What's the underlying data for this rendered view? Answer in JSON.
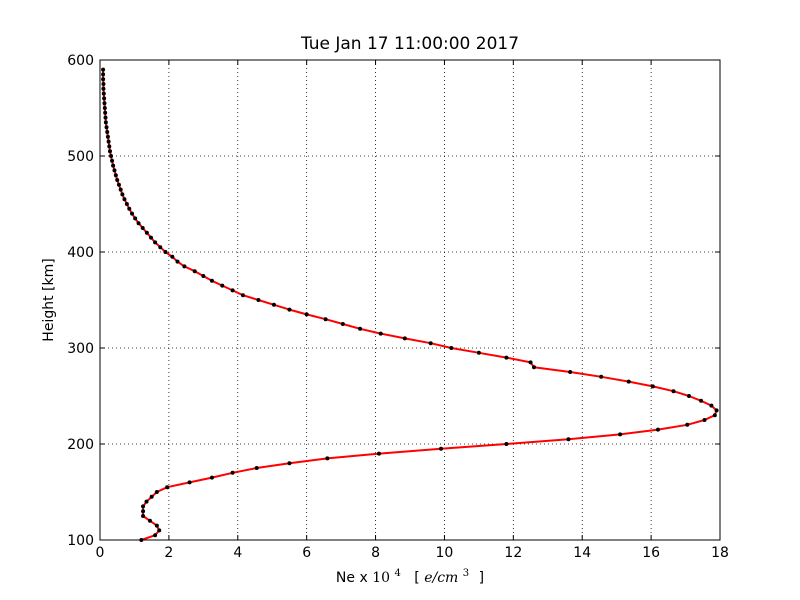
{
  "chart_data": {
    "type": "line",
    "title": "Tue Jan 17 11:00:00 2017",
    "xlabel": {
      "prefix": "Ne x ",
      "base": "10",
      "exponent": "4",
      "unit_open": "[",
      "unit_num": "e/cm",
      "unit_exp": "3",
      "unit_close": "]"
    },
    "ylabel": "Height [km]",
    "xlim": [
      0,
      18
    ],
    "ylim": [
      100,
      600
    ],
    "xticks": [
      0,
      2,
      4,
      6,
      8,
      10,
      12,
      14,
      16,
      18
    ],
    "yticks": [
      100,
      200,
      300,
      400,
      500,
      600
    ],
    "grid": true,
    "colors": {
      "line": "#ff0000",
      "marker": "#000000"
    },
    "series": [
      {
        "points": [
          [
            1.2,
            100
          ],
          [
            1.6,
            105
          ],
          [
            1.72,
            110
          ],
          [
            1.65,
            115
          ],
          [
            1.45,
            120
          ],
          [
            1.25,
            125
          ],
          [
            1.25,
            130
          ],
          [
            1.25,
            135
          ],
          [
            1.35,
            140
          ],
          [
            1.5,
            145
          ],
          [
            1.65,
            150
          ],
          [
            1.95,
            155
          ],
          [
            2.6,
            160
          ],
          [
            3.25,
            165
          ],
          [
            3.85,
            170
          ],
          [
            4.55,
            175
          ],
          [
            5.5,
            180
          ],
          [
            6.6,
            185
          ],
          [
            8.1,
            190
          ],
          [
            9.9,
            195
          ],
          [
            11.8,
            200
          ],
          [
            13.6,
            205
          ],
          [
            15.1,
            210
          ],
          [
            16.2,
            215
          ],
          [
            17.05,
            220
          ],
          [
            17.55,
            225
          ],
          [
            17.85,
            230
          ],
          [
            17.9,
            235
          ],
          [
            17.75,
            240
          ],
          [
            17.45,
            245
          ],
          [
            17.1,
            250
          ],
          [
            16.65,
            255
          ],
          [
            16.05,
            260
          ],
          [
            15.35,
            265
          ],
          [
            14.55,
            270
          ],
          [
            13.65,
            275
          ],
          [
            12.6,
            280
          ],
          [
            12.5,
            285
          ],
          [
            11.8,
            290
          ],
          [
            11.0,
            295
          ],
          [
            10.2,
            300
          ],
          [
            9.6,
            305
          ],
          [
            8.85,
            310
          ],
          [
            8.15,
            315
          ],
          [
            7.55,
            320
          ],
          [
            7.05,
            325
          ],
          [
            6.55,
            330
          ],
          [
            6.0,
            335
          ],
          [
            5.5,
            340
          ],
          [
            5.05,
            345
          ],
          [
            4.6,
            350
          ],
          [
            4.15,
            355
          ],
          [
            3.85,
            360
          ],
          [
            3.55,
            365
          ],
          [
            3.25,
            370
          ],
          [
            3.0,
            375
          ],
          [
            2.75,
            380
          ],
          [
            2.45,
            385
          ],
          [
            2.25,
            390
          ],
          [
            2.1,
            395
          ],
          [
            1.9,
            400
          ],
          [
            1.75,
            405
          ],
          [
            1.6,
            410
          ],
          [
            1.48,
            415
          ],
          [
            1.36,
            420
          ],
          [
            1.24,
            425
          ],
          [
            1.12,
            430
          ],
          [
            1.02,
            435
          ],
          [
            0.93,
            440
          ],
          [
            0.85,
            445
          ],
          [
            0.78,
            450
          ],
          [
            0.71,
            455
          ],
          [
            0.65,
            460
          ],
          [
            0.6,
            465
          ],
          [
            0.55,
            470
          ],
          [
            0.5,
            475
          ],
          [
            0.46,
            480
          ],
          [
            0.42,
            485
          ],
          [
            0.38,
            490
          ],
          [
            0.35,
            495
          ],
          [
            0.32,
            500
          ],
          [
            0.29,
            505
          ],
          [
            0.27,
            510
          ],
          [
            0.25,
            515
          ],
          [
            0.23,
            520
          ],
          [
            0.21,
            525
          ],
          [
            0.19,
            530
          ],
          [
            0.17,
            535
          ],
          [
            0.16,
            540
          ],
          [
            0.15,
            545
          ],
          [
            0.14,
            550
          ],
          [
            0.13,
            555
          ],
          [
            0.12,
            560
          ],
          [
            0.11,
            565
          ],
          [
            0.1,
            570
          ],
          [
            0.1,
            575
          ],
          [
            0.09,
            580
          ],
          [
            0.09,
            585
          ],
          [
            0.09,
            590
          ]
        ]
      }
    ]
  }
}
